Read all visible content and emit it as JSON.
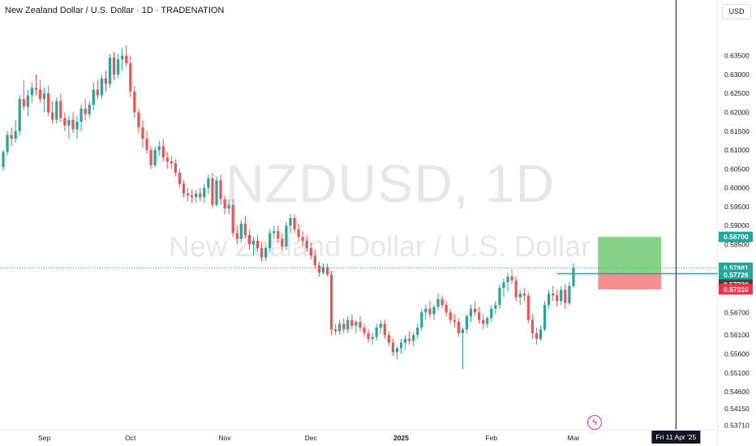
{
  "header": {
    "title": "New Zealand Dollar / U.S. Dollar · 1D · TRADENATION",
    "currency": "USD"
  },
  "watermark": {
    "symbol": "NZDUSD, 1D",
    "name": "New Zealand Dollar / U.S. Dollar"
  },
  "price_scale": {
    "ticks": [
      "0.63500",
      "0.63000",
      "0.62500",
      "0.62000",
      "0.61500",
      "0.61000",
      "0.60500",
      "0.60000",
      "0.59500",
      "0.59000",
      "0.58500",
      "0.56700",
      "0.56100",
      "0.55600",
      "0.55100",
      "0.54600",
      "0.54150",
      "0.53710"
    ]
  },
  "price_labels": {
    "take_profit": "0.58700",
    "last_price": "0.57881",
    "countdown": "09:24:16",
    "entry": "0.57726",
    "entry_alt": "0.57720",
    "stop_loss": "0.57310"
  },
  "time_axis": {
    "labels": [
      "Sep",
      "Oct",
      "Nov",
      "Dec",
      "2025",
      "Feb",
      "Mar",
      "Apr"
    ],
    "crosshair_date": "Fri 11 Apr '25"
  },
  "colors": {
    "up": "#26a69a",
    "down": "#ef5350",
    "profit_zone": "#7ed07f",
    "loss_zone": "#f7888a",
    "last_price": "#26a69a",
    "stop_label": "#f23645",
    "entry_alt_label": "#434651",
    "crosshair_label": "#131722"
  },
  "icons": {
    "lightning": "lightning-icon"
  },
  "chart_data": {
    "type": "candlestick",
    "title": "New Zealand Dollar / U.S. Dollar · 1D · TRADENATION",
    "ylim": [
      0.5355,
      0.639
    ],
    "yticks": [
      0.635,
      0.63,
      0.625,
      0.62,
      0.615,
      0.61,
      0.605,
      0.6,
      0.595,
      0.59,
      0.585,
      0.567,
      0.561,
      0.556,
      0.551,
      0.546,
      0.5415,
      0.5371
    ],
    "x_labels": [
      {
        "label": "Sep",
        "index": 10
      },
      {
        "label": "Oct",
        "index": 31
      },
      {
        "label": "Nov",
        "index": 54
      },
      {
        "label": "Dec",
        "index": 75
      },
      {
        "label": "2025",
        "index": 97
      },
      {
        "label": "Feb",
        "index": 119
      },
      {
        "label": "Mar",
        "index": 139
      },
      {
        "label": "Apr",
        "index": 160
      }
    ],
    "bars_count_axis": 175,
    "candles": [
      [
        0.6055,
        0.61,
        0.6045,
        0.6095
      ],
      [
        0.6095,
        0.615,
        0.6085,
        0.614
      ],
      [
        0.614,
        0.616,
        0.611,
        0.613
      ],
      [
        0.613,
        0.618,
        0.612,
        0.615
      ],
      [
        0.615,
        0.6245,
        0.614,
        0.6235
      ],
      [
        0.6235,
        0.6285,
        0.6205,
        0.6215
      ],
      [
        0.6215,
        0.626,
        0.619,
        0.6245
      ],
      [
        0.6245,
        0.628,
        0.6225,
        0.6265
      ],
      [
        0.6265,
        0.63,
        0.6245,
        0.626
      ],
      [
        0.626,
        0.6285,
        0.6225,
        0.6235
      ],
      [
        0.6235,
        0.6265,
        0.62,
        0.625
      ],
      [
        0.625,
        0.627,
        0.619,
        0.62
      ],
      [
        0.62,
        0.623,
        0.617,
        0.618
      ],
      [
        0.618,
        0.624,
        0.617,
        0.623
      ],
      [
        0.623,
        0.625,
        0.6175,
        0.6185
      ],
      [
        0.6185,
        0.62,
        0.615,
        0.6165
      ],
      [
        0.6165,
        0.619,
        0.613,
        0.618
      ],
      [
        0.618,
        0.62,
        0.6145,
        0.6155
      ],
      [
        0.6155,
        0.619,
        0.613,
        0.6175
      ],
      [
        0.6175,
        0.622,
        0.615,
        0.621
      ],
      [
        0.621,
        0.6235,
        0.618,
        0.6195
      ],
      [
        0.6195,
        0.623,
        0.6185,
        0.622
      ],
      [
        0.622,
        0.628,
        0.6205,
        0.626
      ],
      [
        0.626,
        0.6285,
        0.6235,
        0.6245
      ],
      [
        0.6245,
        0.63,
        0.6235,
        0.629
      ],
      [
        0.629,
        0.631,
        0.6255,
        0.6275
      ],
      [
        0.6275,
        0.6355,
        0.6265,
        0.6345
      ],
      [
        0.6345,
        0.636,
        0.6285,
        0.63
      ],
      [
        0.63,
        0.6355,
        0.629,
        0.634
      ],
      [
        0.634,
        0.637,
        0.631,
        0.635
      ],
      [
        0.635,
        0.6378,
        0.632,
        0.633
      ],
      [
        0.633,
        0.635,
        0.624,
        0.6255
      ],
      [
        0.6255,
        0.627,
        0.6185,
        0.62
      ],
      [
        0.62,
        0.621,
        0.6145,
        0.616
      ],
      [
        0.616,
        0.618,
        0.6105,
        0.613
      ],
      [
        0.613,
        0.615,
        0.609,
        0.61
      ],
      [
        0.61,
        0.611,
        0.605,
        0.606
      ],
      [
        0.606,
        0.611,
        0.6055,
        0.61
      ],
      [
        0.61,
        0.6125,
        0.6085,
        0.611
      ],
      [
        0.611,
        0.613,
        0.607,
        0.608
      ],
      [
        0.608,
        0.6095,
        0.605,
        0.607
      ],
      [
        0.607,
        0.6085,
        0.605,
        0.6065
      ],
      [
        0.6065,
        0.6075,
        0.603,
        0.604
      ],
      [
        0.604,
        0.605,
        0.6,
        0.601
      ],
      [
        0.601,
        0.602,
        0.5975,
        0.5985
      ],
      [
        0.5985,
        0.6,
        0.5965,
        0.598
      ],
      [
        0.598,
        0.5995,
        0.596,
        0.5975
      ],
      [
        0.5975,
        0.5995,
        0.596,
        0.5985
      ],
      [
        0.5985,
        0.6,
        0.5965,
        0.5975
      ],
      [
        0.5975,
        0.601,
        0.596,
        0.6
      ],
      [
        0.6,
        0.6035,
        0.5985,
        0.6025
      ],
      [
        0.6025,
        0.604,
        0.5945,
        0.5955
      ],
      [
        0.5955,
        0.603,
        0.595,
        0.602
      ],
      [
        0.602,
        0.6035,
        0.5955,
        0.597
      ],
      [
        0.597,
        0.598,
        0.593,
        0.5945
      ],
      [
        0.5945,
        0.597,
        0.593,
        0.5955
      ],
      [
        0.5955,
        0.597,
        0.587,
        0.588
      ],
      [
        0.588,
        0.59,
        0.585,
        0.5865
      ],
      [
        0.5865,
        0.5915,
        0.5855,
        0.5905
      ],
      [
        0.5905,
        0.5925,
        0.5865,
        0.5875
      ],
      [
        0.5875,
        0.589,
        0.5835,
        0.585
      ],
      [
        0.585,
        0.587,
        0.582,
        0.586
      ],
      [
        0.586,
        0.5875,
        0.583,
        0.584
      ],
      [
        0.584,
        0.5855,
        0.5805,
        0.5815
      ],
      [
        0.5815,
        0.5845,
        0.5805,
        0.584
      ],
      [
        0.584,
        0.589,
        0.583,
        0.588
      ],
      [
        0.588,
        0.59,
        0.5865,
        0.5885
      ],
      [
        0.5885,
        0.59,
        0.5855,
        0.5865
      ],
      [
        0.5865,
        0.588,
        0.5835,
        0.5845
      ],
      [
        0.5845,
        0.591,
        0.5835,
        0.59
      ],
      [
        0.59,
        0.593,
        0.588,
        0.592
      ],
      [
        0.592,
        0.593,
        0.588,
        0.589
      ],
      [
        0.589,
        0.5905,
        0.586,
        0.587
      ],
      [
        0.587,
        0.5885,
        0.5845,
        0.586
      ],
      [
        0.586,
        0.5875,
        0.583,
        0.584
      ],
      [
        0.584,
        0.5855,
        0.581,
        0.582
      ],
      [
        0.582,
        0.5835,
        0.5785,
        0.5795
      ],
      [
        0.5795,
        0.5805,
        0.5765,
        0.5775
      ],
      [
        0.5775,
        0.58,
        0.577,
        0.579
      ],
      [
        0.579,
        0.58,
        0.5765,
        0.577
      ],
      [
        0.577,
        0.578,
        0.561,
        0.5625
      ],
      [
        0.5625,
        0.564,
        0.561,
        0.562
      ],
      [
        0.562,
        0.565,
        0.561,
        0.564
      ],
      [
        0.564,
        0.5655,
        0.5615,
        0.5625
      ],
      [
        0.5625,
        0.566,
        0.5615,
        0.565
      ],
      [
        0.565,
        0.5665,
        0.5625,
        0.5635
      ],
      [
        0.5635,
        0.565,
        0.5615,
        0.5645
      ],
      [
        0.5645,
        0.566,
        0.562,
        0.563
      ],
      [
        0.563,
        0.564,
        0.5605,
        0.5615
      ],
      [
        0.5615,
        0.5625,
        0.559,
        0.56
      ],
      [
        0.56,
        0.5615,
        0.5585,
        0.5605
      ],
      [
        0.5605,
        0.564,
        0.5595,
        0.563
      ],
      [
        0.563,
        0.565,
        0.5615,
        0.564
      ],
      [
        0.564,
        0.565,
        0.56,
        0.561
      ],
      [
        0.561,
        0.562,
        0.558,
        0.559
      ],
      [
        0.559,
        0.56,
        0.5555,
        0.5565
      ],
      [
        0.5565,
        0.558,
        0.5545,
        0.5575
      ],
      [
        0.5575,
        0.56,
        0.556,
        0.559
      ],
      [
        0.559,
        0.561,
        0.557,
        0.56
      ],
      [
        0.56,
        0.562,
        0.5585,
        0.5595
      ],
      [
        0.5595,
        0.562,
        0.558,
        0.561
      ],
      [
        0.561,
        0.564,
        0.56,
        0.563
      ],
      [
        0.563,
        0.568,
        0.562,
        0.567
      ],
      [
        0.567,
        0.569,
        0.565,
        0.568
      ],
      [
        0.568,
        0.57,
        0.5655,
        0.5665
      ],
      [
        0.5665,
        0.569,
        0.565,
        0.5685
      ],
      [
        0.5685,
        0.572,
        0.5675,
        0.5705
      ],
      [
        0.5705,
        0.5715,
        0.568,
        0.569
      ],
      [
        0.569,
        0.57,
        0.566,
        0.567
      ],
      [
        0.567,
        0.568,
        0.564,
        0.565
      ],
      [
        0.565,
        0.5665,
        0.563,
        0.5645
      ],
      [
        0.5645,
        0.5655,
        0.5605,
        0.5615
      ],
      [
        0.5615,
        0.563,
        0.552,
        0.5625
      ],
      [
        0.5625,
        0.5665,
        0.5615,
        0.566
      ],
      [
        0.566,
        0.569,
        0.5645,
        0.568
      ],
      [
        0.568,
        0.57,
        0.566,
        0.567
      ],
      [
        0.567,
        0.5685,
        0.564,
        0.565
      ],
      [
        0.565,
        0.5665,
        0.5625,
        0.564
      ],
      [
        0.564,
        0.566,
        0.563,
        0.5655
      ],
      [
        0.5655,
        0.569,
        0.5645,
        0.568
      ],
      [
        0.568,
        0.57,
        0.5665,
        0.569
      ],
      [
        0.569,
        0.5745,
        0.568,
        0.5735
      ],
      [
        0.5735,
        0.576,
        0.571,
        0.575
      ],
      [
        0.575,
        0.5775,
        0.5725,
        0.5765
      ],
      [
        0.5765,
        0.5785,
        0.5745,
        0.5755
      ],
      [
        0.5755,
        0.5765,
        0.57,
        0.571
      ],
      [
        0.571,
        0.573,
        0.569,
        0.572
      ],
      [
        0.572,
        0.5735,
        0.57,
        0.5715
      ],
      [
        0.5715,
        0.5725,
        0.564,
        0.565
      ],
      [
        0.565,
        0.5665,
        0.56,
        0.5615
      ],
      [
        0.5615,
        0.563,
        0.5585,
        0.56
      ],
      [
        0.56,
        0.5635,
        0.5595,
        0.5625
      ],
      [
        0.5625,
        0.57,
        0.562,
        0.569
      ],
      [
        0.569,
        0.573,
        0.568,
        0.572
      ],
      [
        0.572,
        0.574,
        0.57,
        0.5715
      ],
      [
        0.5715,
        0.573,
        0.5685,
        0.57
      ],
      [
        0.57,
        0.574,
        0.569,
        0.573
      ],
      [
        0.573,
        0.5745,
        0.568,
        0.5695
      ],
      [
        0.5695,
        0.575,
        0.569,
        0.574
      ],
      [
        0.574,
        0.58,
        0.5735,
        0.5788
      ]
    ],
    "position": {
      "type": "long",
      "entry": 0.57726,
      "take_profit": 0.587,
      "stop_loss": 0.5731,
      "start_index": 145,
      "end_index": 160
    },
    "last_price": 0.57881,
    "crosshair_index": 164
  }
}
